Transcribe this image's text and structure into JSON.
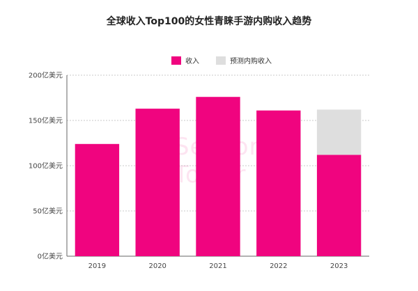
{
  "chart_title": "全球收入Top100的女性青睐手游内购收入趋势",
  "legend": {
    "revenue_label": "收入",
    "forecast_label": "预测内购收入"
  },
  "colors": {
    "revenue": "#f0047f",
    "forecast": "#dedede",
    "grid": "#c8c8c8",
    "axis": "#666666"
  },
  "watermark": {
    "text": "Sensor Tower"
  },
  "chart_data": {
    "type": "bar",
    "title": "全球收入Top100的女性青睐手游内购收入趋势",
    "xlabel": "",
    "ylabel": "",
    "categories": [
      "2019",
      "2020",
      "2021",
      "2022",
      "2023"
    ],
    "series": [
      {
        "name": "收入",
        "values": [
          124,
          163,
          176,
          161,
          112
        ]
      },
      {
        "name": "预测内购收入",
        "values": [
          0,
          0,
          0,
          0,
          50
        ]
      }
    ],
    "stacked": true,
    "ylim": [
      0,
      200
    ],
    "yticks": [
      0,
      50,
      100,
      150,
      200
    ],
    "ytick_labels": [
      "0亿美元",
      "50亿美元",
      "100亿美元",
      "150亿美元",
      "200亿美元"
    ],
    "grid": true,
    "legend_position": "top-center"
  }
}
